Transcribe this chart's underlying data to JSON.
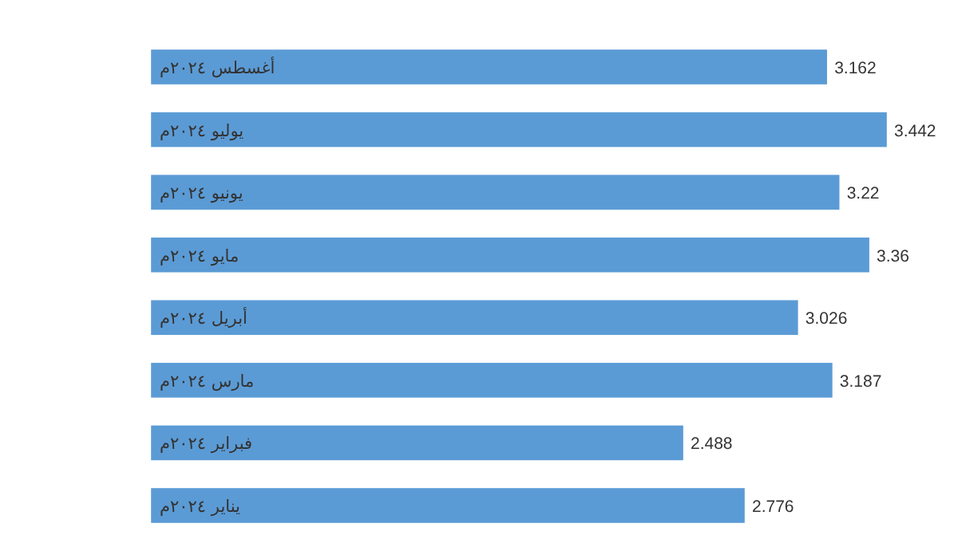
{
  "chart_data": {
    "type": "bar",
    "orientation": "horizontal",
    "categories": [
      "أغسطس ٢٠٢٤م",
      "يوليو ٢٠٢٤م",
      "يونيو ٢٠٢٤م",
      "مايو ٢٠٢٤م",
      "أبريل ٢٠٢٤م",
      "مارس ٢٠٢٤م",
      "فبراير ٢٠٢٤م",
      "يناير ٢٠٢٤م"
    ],
    "values": [
      3.162,
      3.442,
      3.22,
      3.36,
      3.026,
      3.187,
      2.488,
      2.776
    ],
    "color": "#5b9bd5",
    "data_labels": true
  }
}
